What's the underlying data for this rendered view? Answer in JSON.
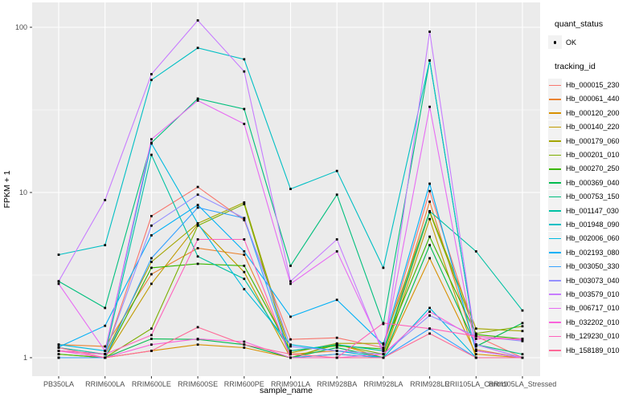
{
  "chart_data": {
    "type": "line",
    "title": "",
    "xlabel": "sample_name",
    "ylabel": "FPKM + 1",
    "y_scale": "log10",
    "y_ticks": [
      1,
      10,
      100
    ],
    "y_tick_labels": [
      "1",
      "10",
      "100"
    ],
    "ylim_log_range": [
      0.72,
      140
    ],
    "grid": "on",
    "panel_bg": "#EBEBEB",
    "grid_color": "#FFFFFF",
    "tick_label_color": "#4D4D4D",
    "point_color": "#000000",
    "legend": {
      "position": "right",
      "quant_status_title": "quant_status",
      "quant_status_items": [
        "OK"
      ],
      "tracking_title": "tracking_id"
    },
    "categories": [
      "PB350LA",
      "RRIM600LA",
      "RRIM600LE",
      "RRIM600SE",
      "RRIM600PE",
      "RRIM901LA",
      "RRIM928BA",
      "RRIM928LA",
      "RRIM928LE",
      "RRII105LA_Control",
      "RRII105LA_Stressed"
    ],
    "series": [
      {
        "name": "Hb_000015_230",
        "color": "#F8766D",
        "values": [
          1.15,
          1.05,
          7.2,
          10.8,
          6.8,
          1.29,
          1.32,
          1.15,
          10.2,
          1.35,
          1.0
        ]
      },
      {
        "name": "Hb_000061_440",
        "color": "#EA8331",
        "values": [
          1.2,
          1.17,
          3.2,
          4.6,
          4.2,
          1.05,
          1.1,
          1.05,
          8.8,
          1.12,
          1.0
        ]
      },
      {
        "name": "Hb_000120_200",
        "color": "#D89000",
        "values": [
          1.0,
          1.0,
          1.1,
          1.2,
          1.15,
          1.0,
          1.21,
          1.0,
          4.0,
          1.05,
          1.0
        ]
      },
      {
        "name": "Hb_000140_220",
        "color": "#C09B00",
        "values": [
          1.05,
          1.0,
          2.8,
          6.4,
          3.3,
          1.0,
          1.05,
          1.0,
          6.9,
          1.0,
          1.0
        ]
      },
      {
        "name": "Hb_000179_060",
        "color": "#A3A500",
        "values": [
          1.1,
          1.05,
          3.8,
          6.5,
          8.7,
          1.07,
          1.22,
          1.22,
          7.7,
          1.5,
          1.45
        ]
      },
      {
        "name": "Hb_000201_010",
        "color": "#7CAE00",
        "values": [
          1.0,
          1.0,
          1.5,
          6.3,
          8.5,
          1.0,
          1.2,
          1.05,
          7.6,
          1.4,
          1.55
        ]
      },
      {
        "name": "Hb_000270_250",
        "color": "#39B600",
        "values": [
          1.05,
          1.0,
          3.5,
          3.7,
          3.6,
          1.1,
          1.18,
          1.13,
          5.4,
          1.38,
          1.3
        ]
      },
      {
        "name": "Hb_000369_040",
        "color": "#00BB4E",
        "values": [
          1.0,
          1.0,
          1.3,
          1.29,
          1.2,
          1.0,
          1.15,
          1.0,
          4.8,
          1.17,
          1.62
        ]
      },
      {
        "name": "Hb_000753_150",
        "color": "#00BF7D",
        "values": [
          2.9,
          2.0,
          20,
          37,
          32,
          3.6,
          9.7,
          1.6,
          63,
          1.2,
          1.05
        ]
      },
      {
        "name": "Hb_001147_030",
        "color": "#00C1A3",
        "values": [
          1.15,
          1.05,
          16.9,
          4.1,
          3.0,
          1.1,
          1.2,
          1.1,
          7.7,
          4.4,
          1.93
        ]
      },
      {
        "name": "Hb_001948_090",
        "color": "#00BFC4",
        "values": [
          4.2,
          4.8,
          48,
          75,
          64,
          10.5,
          13.5,
          3.5,
          63,
          1.2,
          1.0
        ]
      },
      {
        "name": "Hb_002006_060",
        "color": "#00BAE0",
        "values": [
          1.2,
          1.1,
          19.8,
          6.5,
          2.6,
          1.2,
          1.1,
          1.0,
          2.0,
          1.0,
          1.0
        ]
      },
      {
        "name": "Hb_002193_080",
        "color": "#00B0F6",
        "values": [
          1.16,
          1.56,
          5.5,
          8.4,
          4.4,
          1.77,
          2.24,
          1.2,
          11.3,
          1.1,
          1.0
        ]
      },
      {
        "name": "Hb_003050_330",
        "color": "#35A2FF",
        "values": [
          1.0,
          1.0,
          4.0,
          8.1,
          7.0,
          1.0,
          1.05,
          1.0,
          1.5,
          1.0,
          1.0
        ]
      },
      {
        "name": "Hb_003073_040",
        "color": "#9590FF",
        "values": [
          1.1,
          1.05,
          6.3,
          9.7,
          7.0,
          1.17,
          1.1,
          1.05,
          1.8,
          1.35,
          1.26
        ]
      },
      {
        "name": "Hb_003579_010",
        "color": "#C77CFF",
        "values": [
          2.9,
          9.0,
          52,
          110,
          54,
          2.9,
          5.2,
          1.05,
          94,
          1.2,
          1.0
        ]
      },
      {
        "name": "Hb_006717_010",
        "color": "#E76BF3",
        "values": [
          2.8,
          1.1,
          21,
          36,
          26,
          2.8,
          4.4,
          1.1,
          33,
          1.1,
          1.0
        ]
      },
      {
        "name": "Hb_032202_010",
        "color": "#FA62DB",
        "values": [
          1.1,
          1.0,
          1.2,
          1.3,
          1.25,
          1.0,
          1.0,
          1.05,
          1.9,
          1.3,
          1.3
        ]
      },
      {
        "name": "Hb_129230_010",
        "color": "#FF62BC",
        "values": [
          1.1,
          1.05,
          1.37,
          5.2,
          5.2,
          1.0,
          1.0,
          1.62,
          1.5,
          1.35,
          1.28
        ]
      },
      {
        "name": "Hb_158189_010",
        "color": "#FF6A98",
        "values": [
          1.15,
          1.0,
          1.1,
          1.53,
          1.2,
          1.05,
          1.0,
          1.0,
          1.4,
          1.0,
          1.0
        ]
      }
    ]
  }
}
